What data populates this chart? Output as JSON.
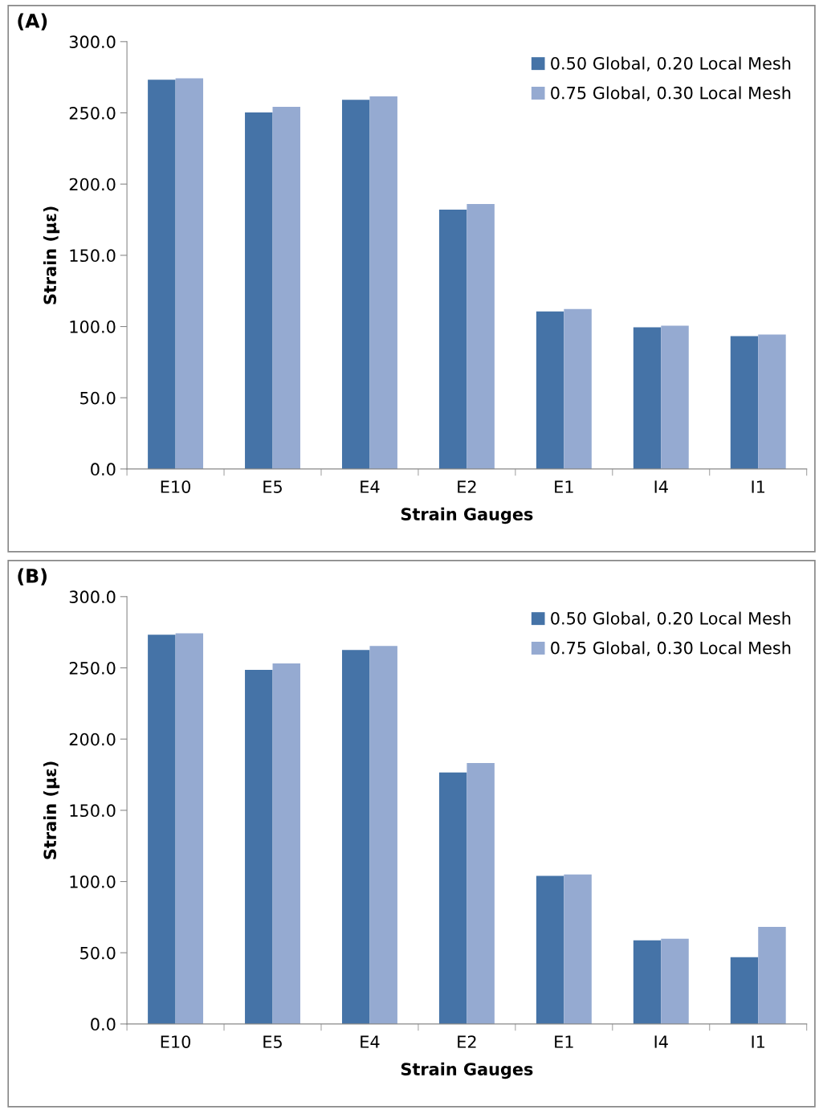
{
  "chart_data": [
    {
      "type": "bar",
      "title": "(A)",
      "xlabel": "Strain Gauges",
      "ylabel": "Strain (με)",
      "categories": [
        "E10",
        "E5",
        "E4",
        "E2",
        "E1",
        "I4",
        "I1"
      ],
      "series": [
        {
          "name": "0.50 Global, 0.20 Local Mesh",
          "color": "#4573a7",
          "values": [
            273.2,
            250.3,
            259.2,
            182.1,
            110.6,
            99.4,
            93.3
          ]
        },
        {
          "name": "0.75 Global, 0.30 Local Mesh",
          "color": "#95aad1",
          "values": [
            274.3,
            254.2,
            261.5,
            186.0,
            112.3,
            100.6,
            94.4
          ]
        }
      ],
      "ylim": [
        0,
        300
      ],
      "yticks": [
        {
          "value": 0,
          "label": "0.0"
        },
        {
          "value": 50,
          "label": "50.0"
        },
        {
          "value": 100,
          "label": "100.0"
        },
        {
          "value": 150,
          "label": "150.0"
        },
        {
          "value": 200,
          "label": "200.0"
        },
        {
          "value": 250,
          "label": "250.0"
        },
        {
          "value": 300,
          "label": "300.0"
        }
      ],
      "grid": false,
      "legend": "top right"
    },
    {
      "type": "bar",
      "title": "(B)",
      "xlabel": "Strain Gauges",
      "ylabel": "Strain (με)",
      "categories": [
        "E10",
        "E5",
        "E4",
        "E2",
        "E1",
        "I4",
        "I1"
      ],
      "series": [
        {
          "name": "0.50 Global, 0.20 Local Mesh",
          "color": "#4573a7",
          "values": [
            273.2,
            248.6,
            262.6,
            176.5,
            103.9,
            58.7,
            46.9
          ]
        },
        {
          "name": "0.75 Global, 0.30 Local Mesh",
          "color": "#95aad1",
          "values": [
            274.3,
            253.1,
            265.4,
            183.2,
            105.0,
            59.8,
            68.2
          ]
        }
      ],
      "ylim": [
        0,
        300
      ],
      "yticks": [
        {
          "value": 0,
          "label": "0.0"
        },
        {
          "value": 50,
          "label": "50.0"
        },
        {
          "value": 100,
          "label": "100.0"
        },
        {
          "value": 150,
          "label": "150.0"
        },
        {
          "value": 200,
          "label": "200.0"
        },
        {
          "value": 250,
          "label": "250.0"
        },
        {
          "value": 300,
          "label": "300.0"
        }
      ],
      "grid": false,
      "legend": "top right"
    }
  ]
}
